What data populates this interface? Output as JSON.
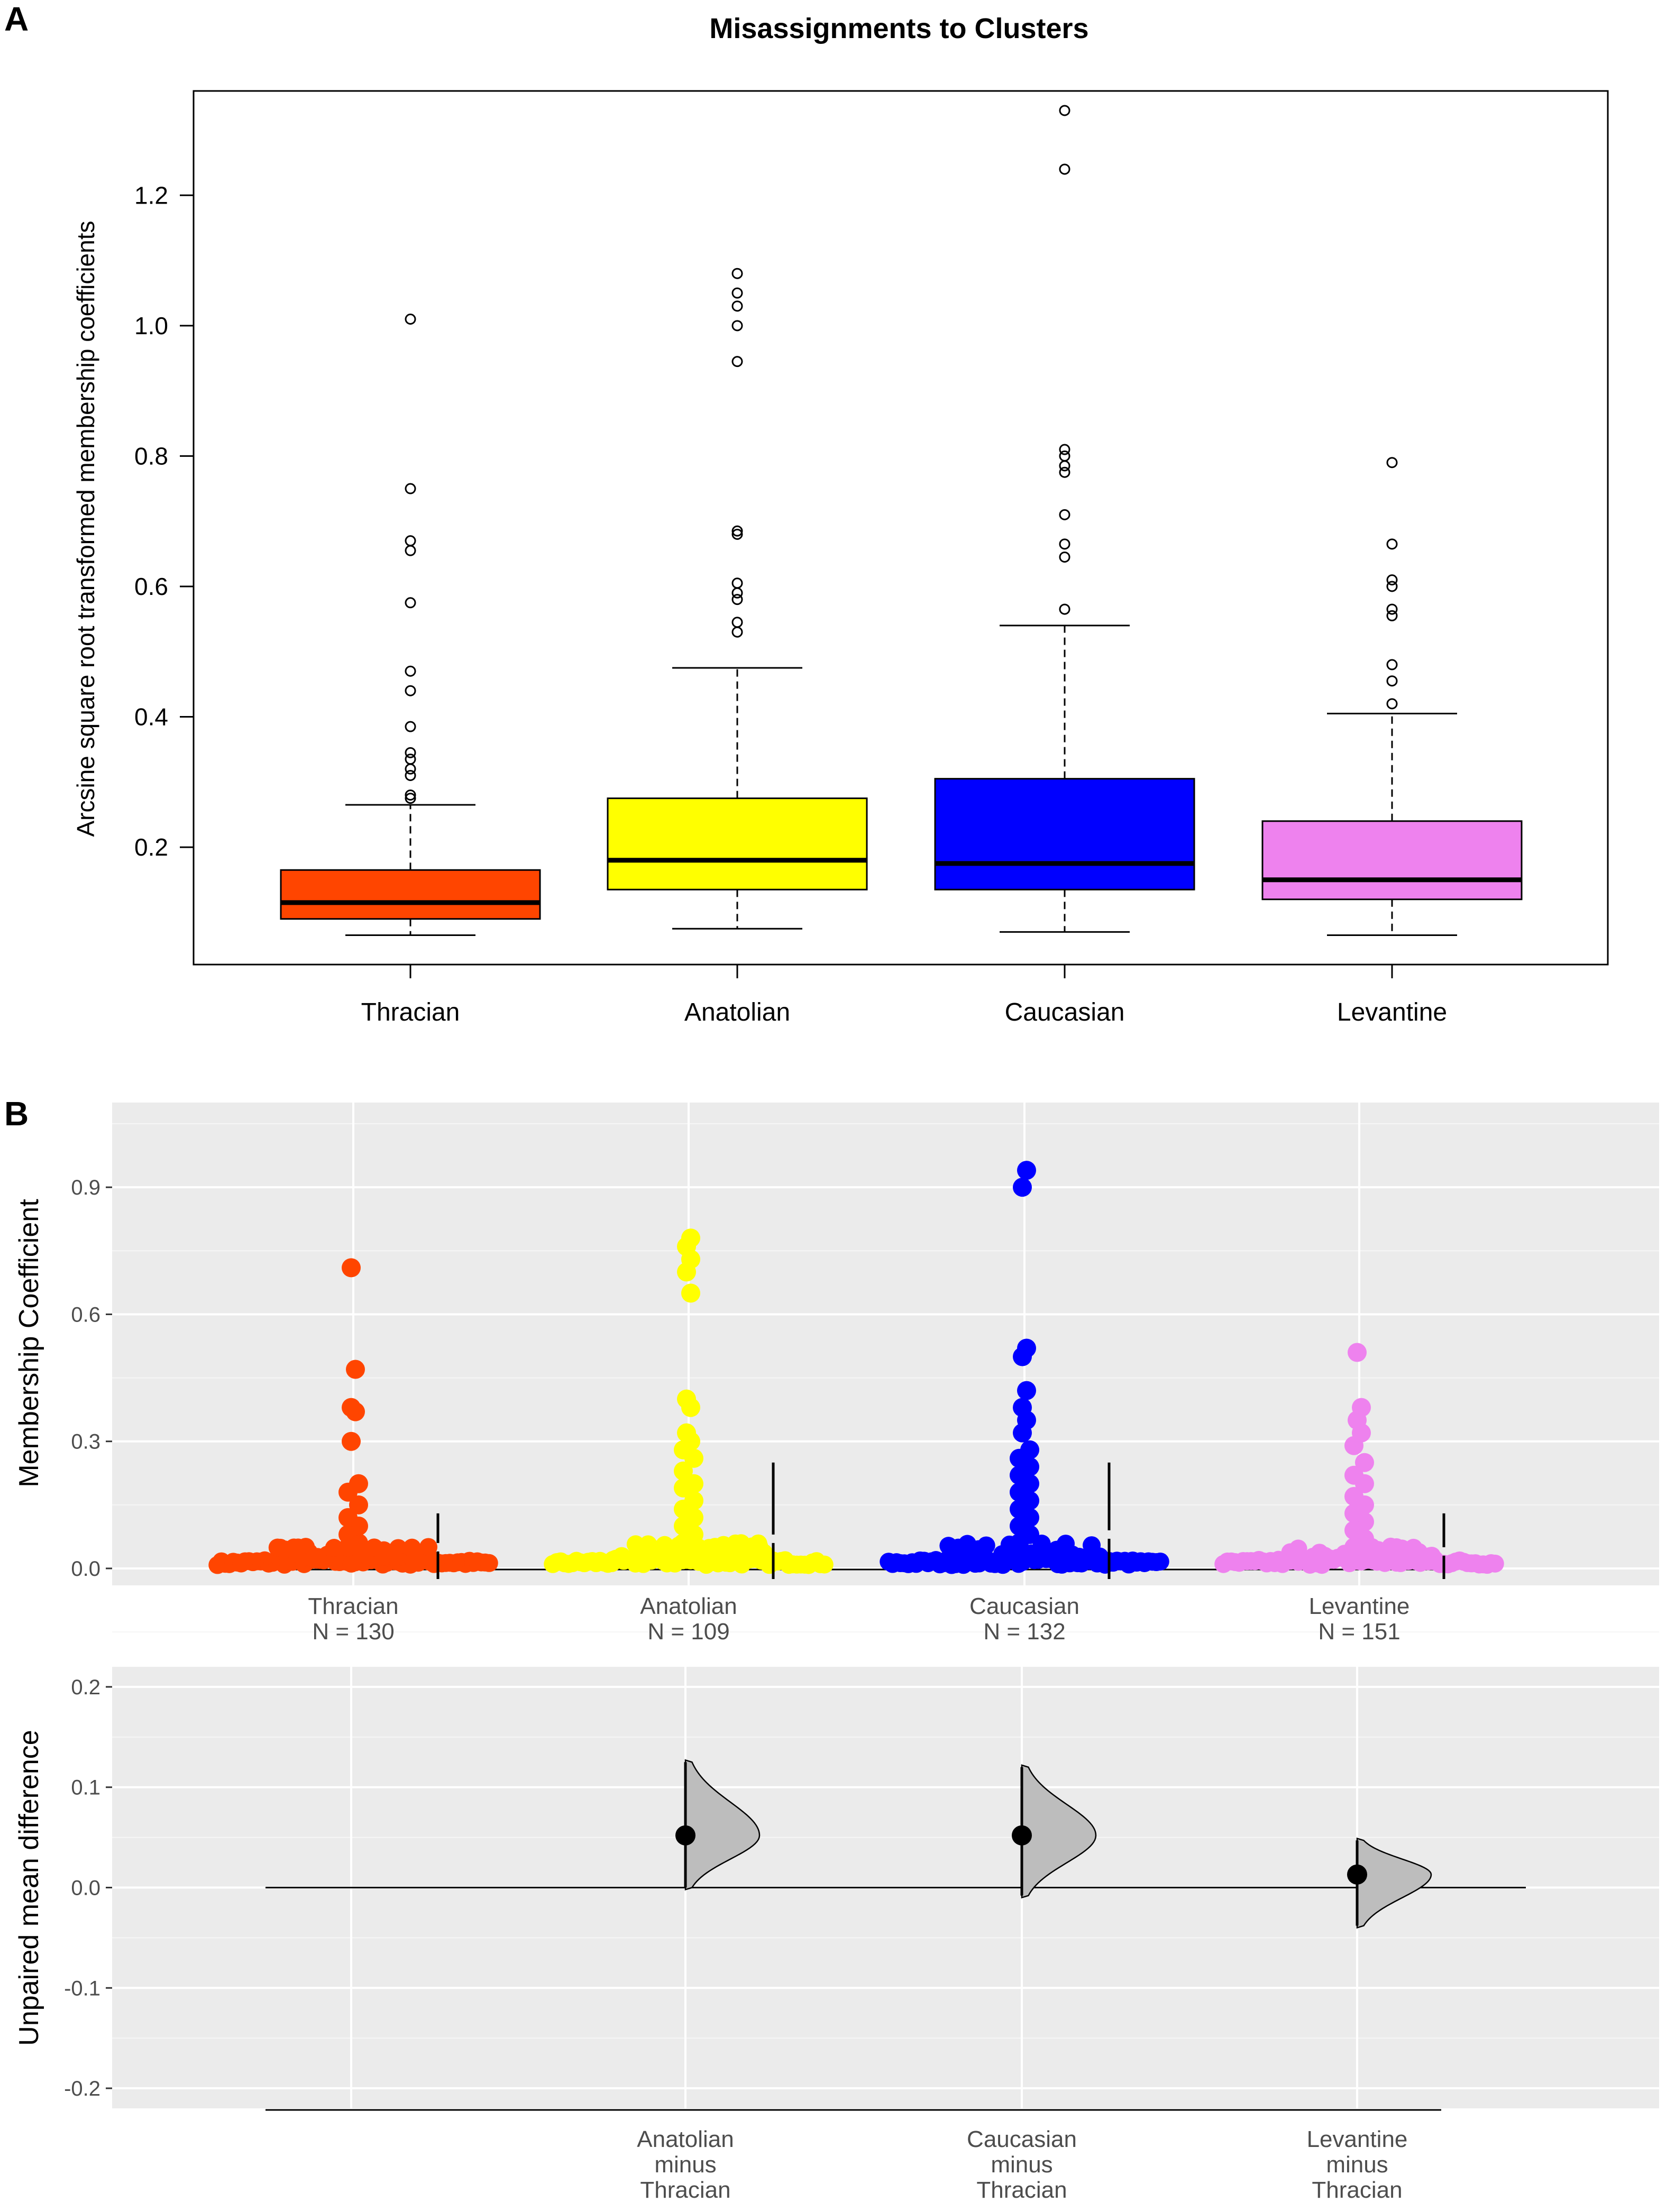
{
  "panel_a_label": "A",
  "panel_b_label": "B",
  "chart_data": [
    {
      "type": "box",
      "panel": "A",
      "title": "Misassignments to Clusters",
      "xlabel": "",
      "ylabel": "Arcsine square root transformed membership coefficients",
      "ylim": [
        0.02,
        1.36
      ],
      "yticks": [
        0.2,
        0.4,
        0.6,
        0.8,
        1.0,
        1.2
      ],
      "ytick_labels": [
        "0.2",
        "0.4",
        "0.6",
        "0.8",
        "1.0",
        "1.2"
      ],
      "grid": false,
      "categories": [
        "Thracian",
        "Anatolian",
        "Caucasian",
        "Levantine"
      ],
      "colors": [
        "#ff4500",
        "#ffff00",
        "#0000ff",
        "#ee82ee"
      ],
      "boxes": [
        {
          "name": "Thracian",
          "whisker_low": 0.065,
          "q1": 0.09,
          "median": 0.115,
          "q3": 0.165,
          "whisker_high": 0.265,
          "outliers": [
            0.275,
            0.28,
            0.31,
            0.32,
            0.335,
            0.345,
            0.385,
            0.44,
            0.47,
            0.575,
            0.655,
            0.67,
            0.75,
            1.01
          ]
        },
        {
          "name": "Anatolian",
          "whisker_low": 0.075,
          "q1": 0.135,
          "median": 0.18,
          "q3": 0.275,
          "whisker_high": 0.475,
          "outliers": [
            0.53,
            0.545,
            0.58,
            0.59,
            0.605,
            0.68,
            0.685,
            0.945,
            1.0,
            1.03,
            1.05,
            1.08
          ]
        },
        {
          "name": "Caucasian",
          "whisker_low": 0.07,
          "q1": 0.135,
          "median": 0.175,
          "q3": 0.305,
          "whisker_high": 0.54,
          "outliers": [
            0.565,
            0.645,
            0.665,
            0.71,
            0.775,
            0.785,
            0.8,
            0.81,
            1.24,
            1.33
          ]
        },
        {
          "name": "Levantine",
          "whisker_low": 0.065,
          "q1": 0.12,
          "median": 0.15,
          "q3": 0.24,
          "whisker_high": 0.405,
          "outliers": [
            0.42,
            0.455,
            0.48,
            0.555,
            0.565,
            0.6,
            0.61,
            0.665,
            0.79
          ]
        }
      ]
    },
    {
      "type": "scatter",
      "panel": "B-top",
      "title": "",
      "xlabel": "",
      "ylabel": "Membership Coefficient",
      "ylim": [
        -0.04,
        1.1
      ],
      "yticks": [
        0.0,
        0.3,
        0.6,
        0.9
      ],
      "ytick_labels": [
        "0.0",
        "0.3",
        "0.6",
        "0.9"
      ],
      "grid": true,
      "categories": [
        "Thracian",
        "Anatolian",
        "Caucasian",
        "Levantine"
      ],
      "n_labels": [
        "N = 130",
        "N = 109",
        "N = 132",
        "N = 151"
      ],
      "colors": [
        "#ff4500",
        "#ffff00",
        "#0000ff",
        "#ee82ee"
      ],
      "series": [
        {
          "name": "Thracian",
          "bulk_max": 0.04,
          "bulk_width": 0.48,
          "values": [
            0.05,
            0.06,
            0.08,
            0.1,
            0.12,
            0.15,
            0.18,
            0.2,
            0.3,
            0.37,
            0.38,
            0.47,
            0.71
          ],
          "mean_sd_bar": [
            0.0,
            0.05,
            0.13
          ]
        },
        {
          "name": "Anatolian",
          "bulk_max": 0.05,
          "bulk_width": 0.48,
          "values": [
            0.06,
            0.08,
            0.1,
            0.12,
            0.14,
            0.16,
            0.19,
            0.2,
            0.23,
            0.26,
            0.28,
            0.3,
            0.32,
            0.38,
            0.4,
            0.65,
            0.7,
            0.73,
            0.76,
            0.78
          ],
          "mean_sd_bar": [
            0.0,
            0.07,
            0.25
          ]
        },
        {
          "name": "Caucasian",
          "bulk_max": 0.05,
          "bulk_width": 0.46,
          "values": [
            0.06,
            0.08,
            0.1,
            0.12,
            0.14,
            0.16,
            0.18,
            0.2,
            0.22,
            0.24,
            0.26,
            0.28,
            0.32,
            0.35,
            0.38,
            0.42,
            0.5,
            0.52,
            0.9,
            0.94
          ],
          "mean_sd_bar": [
            0.0,
            0.08,
            0.25
          ]
        },
        {
          "name": "Levantine",
          "bulk_max": 0.04,
          "bulk_width": 0.46,
          "values": [
            0.05,
            0.07,
            0.09,
            0.11,
            0.13,
            0.15,
            0.17,
            0.2,
            0.22,
            0.25,
            0.29,
            0.32,
            0.35,
            0.38,
            0.51
          ],
          "mean_sd_bar": [
            0.0,
            0.04,
            0.13
          ]
        }
      ]
    },
    {
      "type": "scatter",
      "panel": "B-bottom",
      "title": "",
      "xlabel": "",
      "ylabel": "Unpaired mean difference",
      "ylim": [
        -0.22,
        0.22
      ],
      "yticks": [
        -0.2,
        -0.1,
        0.0,
        0.1,
        0.2
      ],
      "ytick_labels": [
        "-0.2",
        "-0.1",
        "0.0",
        "0.1",
        "0.2"
      ],
      "grid": true,
      "reference_line": 0.0,
      "categories": [
        "",
        "Anatolian minus Thracian",
        "Caucasian minus Thracian",
        "Levantine minus Thracian"
      ],
      "category_lines": [
        [],
        [
          "Anatolian",
          "minus",
          "Thracian"
        ],
        [
          "Caucasian",
          "minus",
          "Thracian"
        ],
        [
          "Levantine",
          "minus",
          "Thracian"
        ]
      ],
      "estimates": [
        {
          "name": "Anatolian minus Thracian",
          "mean_diff": 0.052,
          "ci": [
            0.0,
            0.125
          ],
          "mode": 0.052
        },
        {
          "name": "Caucasian minus Thracian",
          "mean_diff": 0.052,
          "ci": [
            -0.008,
            0.12
          ],
          "mode": 0.052
        },
        {
          "name": "Levantine minus Thracian",
          "mean_diff": 0.013,
          "ci": [
            -0.038,
            0.047
          ],
          "mode": 0.013
        }
      ]
    }
  ]
}
